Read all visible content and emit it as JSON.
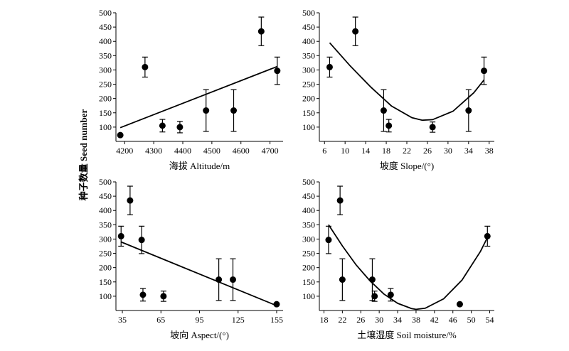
{
  "figure": {
    "shared_ylabel": "种子数量 Seed number"
  },
  "chart_data": [
    {
      "type": "scatter",
      "xlabel": "海拔 Altitude/m",
      "ylabel": "种子数量 Seed number",
      "xlim": [
        4170,
        4745
      ],
      "ylim": [
        50,
        500
      ],
      "xticks": [
        4200,
        4300,
        4400,
        4500,
        4600,
        4700
      ],
      "yticks": [
        100,
        150,
        200,
        250,
        300,
        350,
        400,
        450,
        500
      ],
      "points": [
        {
          "x": 4185,
          "y": 72,
          "err": 0
        },
        {
          "x": 4270,
          "y": 310,
          "err": 35
        },
        {
          "x": 4330,
          "y": 105,
          "err": 22
        },
        {
          "x": 4390,
          "y": 100,
          "err": 20
        },
        {
          "x": 4480,
          "y": 158,
          "err": 73
        },
        {
          "x": 4575,
          "y": 158,
          "err": 73
        },
        {
          "x": 4670,
          "y": 435,
          "err": 50
        },
        {
          "x": 4725,
          "y": 297,
          "err": 48
        }
      ],
      "fit": {
        "kind": "linear",
        "x": [
          4185,
          4725
        ],
        "y": [
          98,
          312
        ]
      }
    },
    {
      "type": "scatter",
      "xlabel": "坡度 Slope/(°)",
      "ylabel": "",
      "xlim": [
        5,
        39
      ],
      "ylim": [
        50,
        500
      ],
      "xticks": [
        6,
        10,
        14,
        18,
        22,
        26,
        30,
        34,
        38
      ],
      "yticks": [
        100,
        150,
        200,
        250,
        300,
        350,
        400,
        450,
        500
      ],
      "points": [
        {
          "x": 7,
          "y": 310,
          "err": 35
        },
        {
          "x": 12,
          "y": 435,
          "err": 50
        },
        {
          "x": 17.5,
          "y": 158,
          "err": 73
        },
        {
          "x": 18.5,
          "y": 105,
          "err": 22
        },
        {
          "x": 27,
          "y": 100,
          "err": 18
        },
        {
          "x": 34,
          "y": 158,
          "err": 73
        },
        {
          "x": 37,
          "y": 297,
          "err": 48
        }
      ],
      "fit": {
        "kind": "quadratic",
        "x": [
          7,
          11,
          15,
          19,
          23,
          25,
          27,
          31,
          35,
          37
        ],
        "y": [
          395,
          314,
          240,
          174,
          133,
          124,
          126,
          156,
          220,
          265
        ]
      }
    },
    {
      "type": "scatter",
      "xlabel": "坡向 Aspect/(°)",
      "ylabel": "",
      "xlim": [
        30,
        160
      ],
      "ylim": [
        50,
        500
      ],
      "xticks": [
        35,
        65,
        95,
        125,
        155
      ],
      "yticks": [
        100,
        150,
        200,
        250,
        300,
        350,
        400,
        450,
        500
      ],
      "points": [
        {
          "x": 34,
          "y": 310,
          "err": 35
        },
        {
          "x": 41,
          "y": 435,
          "err": 50
        },
        {
          "x": 50,
          "y": 297,
          "err": 48
        },
        {
          "x": 51,
          "y": 105,
          "err": 22
        },
        {
          "x": 67,
          "y": 100,
          "err": 18
        },
        {
          "x": 110,
          "y": 158,
          "err": 73
        },
        {
          "x": 121,
          "y": 158,
          "err": 73
        },
        {
          "x": 155,
          "y": 72,
          "err": 0
        }
      ],
      "fit": {
        "kind": "linear",
        "x": [
          34,
          155
        ],
        "y": [
          290,
          67
        ]
      }
    },
    {
      "type": "scatter",
      "xlabel": "土壤湿度 Soil moisture/%",
      "ylabel": "",
      "xlim": [
        17,
        55
      ],
      "ylim": [
        50,
        500
      ],
      "xticks": [
        18,
        22,
        26,
        30,
        34,
        38,
        42,
        46,
        50,
        54
      ],
      "yticks": [
        100,
        150,
        200,
        250,
        300,
        350,
        400,
        450,
        500
      ],
      "points": [
        {
          "x": 19,
          "y": 297,
          "err": 48
        },
        {
          "x": 21.5,
          "y": 435,
          "err": 50
        },
        {
          "x": 22,
          "y": 158,
          "err": 73
        },
        {
          "x": 28.5,
          "y": 158,
          "err": 73
        },
        {
          "x": 29,
          "y": 100,
          "err": 18
        },
        {
          "x": 32.5,
          "y": 105,
          "err": 22
        },
        {
          "x": 47.5,
          "y": 72,
          "err": 0
        },
        {
          "x": 53.5,
          "y": 310,
          "err": 35
        }
      ],
      "fit": {
        "kind": "quadratic",
        "x": [
          19,
          22,
          25,
          28,
          31,
          34,
          37,
          38,
          40,
          44,
          48,
          52,
          53.5
        ],
        "y": [
          350,
          276,
          209,
          154,
          108,
          75,
          57,
          54,
          58,
          91,
          157,
          257,
          305
        ]
      }
    }
  ]
}
